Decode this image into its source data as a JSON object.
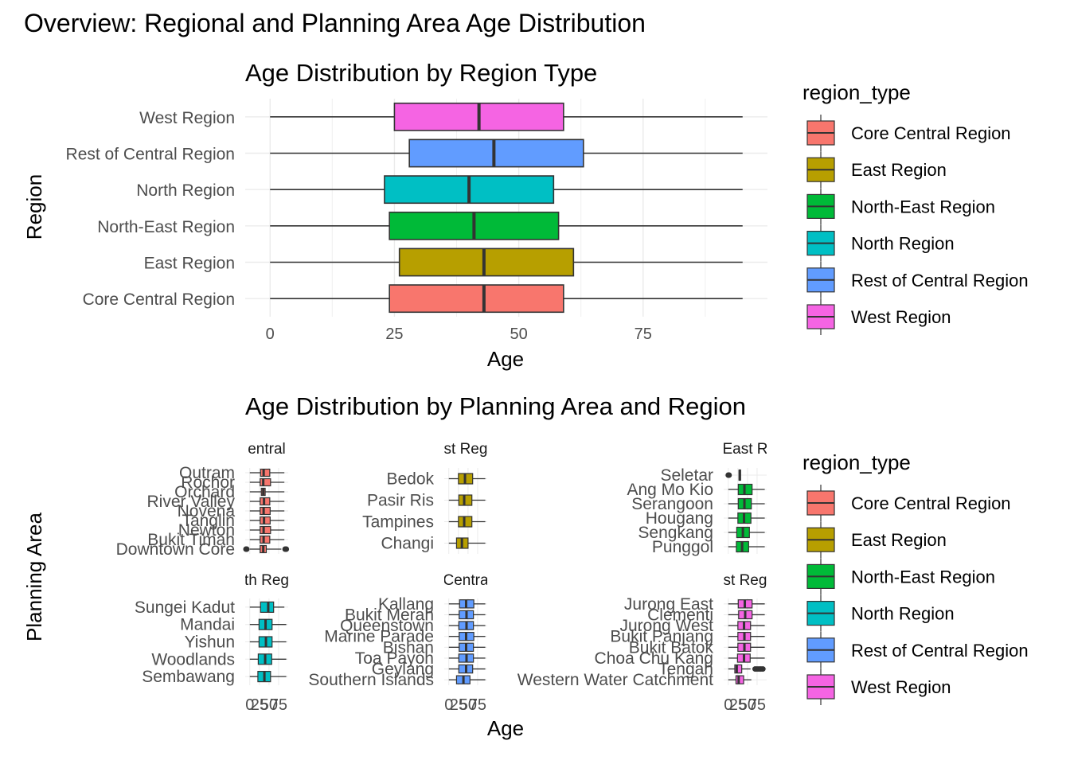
{
  "page_title": "Overview: Regional and Planning Area Age Distribution",
  "colors": {
    "Core Central Region": "#F8766D",
    "East Region": "#B79F00",
    "North-East Region": "#00BA38",
    "North Region": "#00BFC4",
    "Rest of Central Region": "#619CFF",
    "West Region": "#F564E3"
  },
  "chart_data": [
    {
      "type": "box",
      "title": "Age Distribution by Region Type",
      "xlabel": "Age",
      "ylabel": "Region",
      "xlim": [
        -5,
        100
      ],
      "x_ticks": [
        0,
        25,
        50,
        75
      ],
      "orientation": "horizontal",
      "legend_title": "region_type",
      "legend_position": "right",
      "legend_entries": [
        "Core Central Region",
        "East Region",
        "North-East Region",
        "North Region",
        "Rest of Central Region",
        "West Region"
      ],
      "categories": [
        "Core Central Region",
        "East Region",
        "North-East Region",
        "North Region",
        "Rest of Central Region",
        "West Region"
      ],
      "boxes": [
        {
          "name": "Core Central Region",
          "whisker_low": 0,
          "q1": 24,
          "median": 43,
          "q3": 59,
          "whisker_high": 95
        },
        {
          "name": "East Region",
          "whisker_low": 0,
          "q1": 26,
          "median": 43,
          "q3": 61,
          "whisker_high": 95
        },
        {
          "name": "North-East Region",
          "whisker_low": 0,
          "q1": 24,
          "median": 41,
          "q3": 58,
          "whisker_high": 95
        },
        {
          "name": "North Region",
          "whisker_low": 0,
          "q1": 23,
          "median": 40,
          "q3": 57,
          "whisker_high": 95
        },
        {
          "name": "Rest of Central Region",
          "whisker_low": 0,
          "q1": 28,
          "median": 45,
          "q3": 63,
          "whisker_high": 95
        },
        {
          "name": "West Region",
          "whisker_low": 0,
          "q1": 25,
          "median": 42,
          "q3": 59,
          "whisker_high": 95
        }
      ]
    },
    {
      "type": "box",
      "title": "Age Distribution by Planning Area and Region",
      "xlabel": "Age",
      "ylabel": "Planning Area",
      "x_ticks": [
        0,
        25,
        50,
        75
      ],
      "x_tick_text": [
        "0",
        "25",
        "50",
        "75"
      ],
      "orientation": "horizontal",
      "legend_title": "region_type",
      "legend_position": "right",
      "legend_entries": [
        "Core Central Region",
        "East Region",
        "North-East Region",
        "North Region",
        "Rest of Central Region",
        "West Region"
      ],
      "facets": [
        {
          "strip": "entral",
          "region": "Core Central Region",
          "areas": [
            "Outram",
            "Rochor",
            "Orchard",
            "River Valley",
            "Novena",
            "Tanglin",
            "Newton",
            "Bukit Timah",
            "Downtown Core"
          ],
          "q1": [
            28,
            27,
            30,
            27,
            27,
            27,
            27,
            27,
            27
          ],
          "median": [
            36,
            35,
            35,
            37,
            36,
            37,
            36,
            36,
            35
          ],
          "q3": [
            52,
            54,
            40,
            52,
            53,
            53,
            54,
            52,
            43
          ],
          "whisker_low": [
            0,
            0,
            0,
            0,
            0,
            0,
            0,
            0,
            0
          ],
          "whisker_high": [
            90,
            90,
            90,
            90,
            90,
            90,
            90,
            90,
            82
          ],
          "outliers": [
            [],
            [],
            [],
            [],
            [],
            [],
            [],
            [],
            [
              -10,
              -8,
              92,
              95
            ]
          ]
        },
        {
          "strip": "st Reg",
          "region": "East Region",
          "areas": [
            "Bedok",
            "Pasir Ris",
            "Tampines",
            "Changi"
          ],
          "q1": [
            25,
            26,
            25,
            20
          ],
          "median": [
            42,
            40,
            40,
            34
          ],
          "q3": [
            62,
            60,
            60,
            50
          ],
          "whisker_low": [
            0,
            0,
            0,
            0
          ],
          "whisker_high": [
            95,
            95,
            95,
            95
          ],
          "outliers": [
            [],
            [],
            [],
            []
          ]
        },
        {
          "strip": "East R",
          "region": "North-East Region",
          "areas": [
            "Seletar",
            "Ang Mo Kio",
            "Serangoon",
            "Hougang",
            "Sengkang",
            "Punggol"
          ],
          "q1": [
            28,
            26,
            26,
            25,
            22,
            21
          ],
          "median": [
            30,
            42,
            42,
            41,
            38,
            36
          ],
          "q3": [
            32,
            62,
            60,
            59,
            55,
            53
          ],
          "whisker_low": [
            29,
            0,
            0,
            0,
            0,
            0
          ],
          "whisker_high": [
            32,
            95,
            95,
            95,
            95,
            95
          ],
          "outliers": [
            [
              0,
              2
            ],
            [],
            [],
            [],
            [],
            []
          ]
        },
        {
          "strip": "th Reg",
          "region": "North Region",
          "areas": [
            "Sungei Kadut",
            "Mandai",
            "Yishun",
            "Woodlands",
            "Sembawang"
          ],
          "q1": [
            28,
            24,
            24,
            22,
            21
          ],
          "median": [
            48,
            41,
            42,
            40,
            38
          ],
          "q3": [
            62,
            58,
            58,
            57,
            54
          ],
          "whisker_low": [
            0,
            0,
            0,
            0,
            0
          ],
          "whisker_high": [
            90,
            95,
            95,
            95,
            95
          ],
          "outliers": [
            [],
            [],
            [],
            [],
            []
          ]
        },
        {
          "strip": "Centra",
          "region": "Rest of Central Region",
          "areas": [
            "Kallang",
            "Bukit Merah",
            "Queenstown",
            "Marine Parade",
            "Bishan",
            "Toa Payoh",
            "Geylang",
            "Southern Islands"
          ],
          "q1": [
            28,
            27,
            26,
            27,
            27,
            26,
            26,
            20
          ],
          "median": [
            45,
            46,
            46,
            45,
            45,
            46,
            45,
            38
          ],
          "q3": [
            65,
            64,
            64,
            65,
            64,
            64,
            62,
            55
          ],
          "whisker_low": [
            0,
            0,
            0,
            0,
            0,
            0,
            0,
            0
          ],
          "whisker_high": [
            95,
            95,
            95,
            95,
            95,
            95,
            95,
            95
          ],
          "outliers": [
            [],
            [],
            [],
            [],
            [],
            [],
            [],
            []
          ]
        },
        {
          "strip": "st Reg",
          "region": "West Region",
          "areas": [
            "Jurong East",
            "Clementi",
            "Jurong West",
            "Bukit Panjang",
            "Bukit Batok",
            "Choa Chu Kang",
            "Tengah",
            "Western Water Catchment"
          ],
          "q1": [
            26,
            27,
            25,
            25,
            25,
            24,
            17,
            20
          ],
          "median": [
            43,
            44,
            41,
            42,
            42,
            41,
            22,
            27
          ],
          "q3": [
            62,
            62,
            58,
            58,
            58,
            57,
            35,
            40
          ],
          "whisker_low": [
            0,
            0,
            0,
            0,
            0,
            0,
            0,
            0
          ],
          "whisker_high": [
            95,
            95,
            95,
            95,
            95,
            95,
            58,
            60
          ],
          "outliers": [
            [],
            [],
            [],
            [],
            [],
            [],
            [
              70,
              75,
              80,
              85,
              90
            ],
            []
          ]
        }
      ]
    }
  ]
}
